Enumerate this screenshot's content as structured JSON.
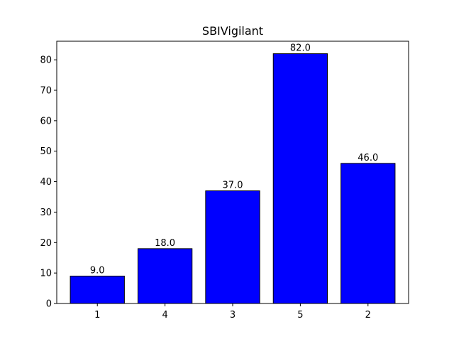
{
  "chart_data": {
    "type": "bar",
    "title": "SBIVigilant",
    "xlabel": "",
    "ylabel": "",
    "categories": [
      "1",
      "4",
      "3",
      "5",
      "2"
    ],
    "values": [
      9.0,
      18.0,
      37.0,
      82.0,
      46.0
    ],
    "value_labels": [
      "9.0",
      "18.0",
      "37.0",
      "82.0",
      "46.0"
    ],
    "ylim": [
      0,
      86.1
    ],
    "yticks": [
      0,
      10,
      20,
      30,
      40,
      50,
      60,
      70,
      80
    ],
    "ytick_labels": [
      "0",
      "10",
      "20",
      "30",
      "40",
      "50",
      "60",
      "70",
      "80"
    ],
    "grid": false,
    "legend": "none",
    "colors": {
      "bar_fill": "#0000ff",
      "bar_edge": "#000000",
      "axes": "#000000",
      "background": "#ffffff"
    }
  }
}
